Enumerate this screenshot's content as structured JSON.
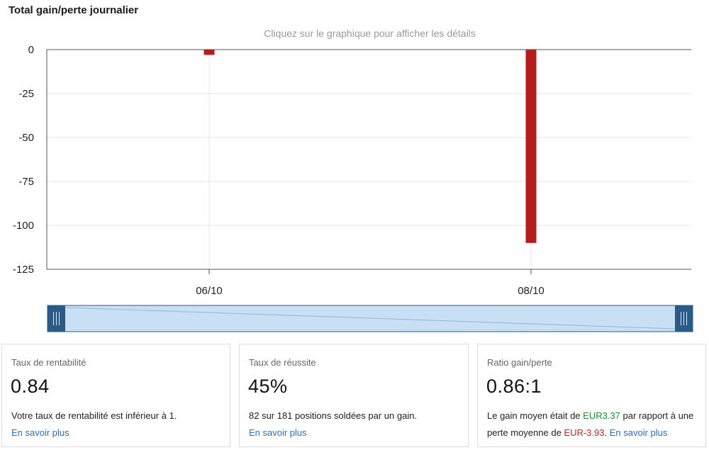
{
  "header": {
    "title": "Total gain/perte journalier",
    "hint": "Cliquez sur le graphique pour afficher les détails"
  },
  "chart_data": {
    "type": "bar",
    "categories": [
      "06/10",
      "08/10"
    ],
    "values": [
      -3,
      -110
    ],
    "ylim": [
      -125,
      0
    ],
    "yticks": [
      0,
      -25,
      -50,
      -75,
      -100,
      -125
    ],
    "ytick_labels": [
      "0",
      "-25",
      "-50",
      "-75",
      "-100",
      "-125"
    ],
    "bar_color": "#b71c1c",
    "grid": true
  },
  "navigator": {
    "fill_color": "#c9dff3",
    "handle_color": "#2c5a86"
  },
  "cards": [
    {
      "label": "Taux de rentabilité",
      "value": "0.84",
      "desc": "Votre taux de rentabilité est inférieur à 1.",
      "link": "En savoir plus"
    },
    {
      "label": "Taux de réussite",
      "value": "45%",
      "desc": "82 sur 181 positions soldées par un gain.",
      "link": "En savoir plus"
    },
    {
      "label": "Ratio gain/perte",
      "value": "0.86:1",
      "desc_part1": "Le gain moyen était de ",
      "avg_gain": "EUR3.37",
      "desc_part2": " par rapport à une perte moyenne de ",
      "avg_loss": "EUR-3.93",
      "desc_part3": ". ",
      "link": "En savoir plus"
    }
  ]
}
